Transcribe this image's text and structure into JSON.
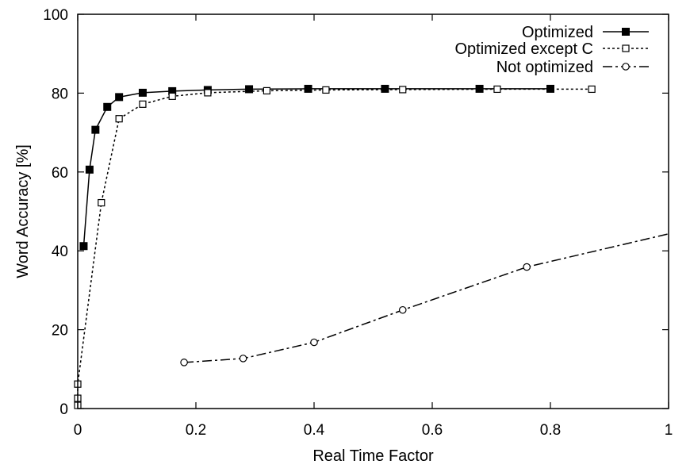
{
  "chart_data": {
    "type": "line",
    "xlabel": "Real Time Factor",
    "ylabel": "Word Accuracy [%]",
    "xlim": [
      0,
      1
    ],
    "ylim": [
      0,
      100
    ],
    "xticks": [
      0,
      0.2,
      0.4,
      0.6,
      0.8,
      1
    ],
    "xtick_labels": [
      "0",
      "0.2",
      "0.4",
      "0.6",
      "0.8",
      "1"
    ],
    "yticks": [
      0,
      20,
      40,
      60,
      80,
      100
    ],
    "ytick_labels": [
      "0",
      "20",
      "40",
      "60",
      "80",
      "100"
    ],
    "grid": false,
    "legend_position": "top-right",
    "series": [
      {
        "name": "Optimized",
        "line_style": "solid",
        "marker": "filled-square",
        "x": [
          0.01,
          0.02,
          0.03,
          0.05,
          0.07,
          0.11,
          0.16,
          0.22,
          0.29,
          0.39,
          0.52,
          0.68,
          0.8
        ],
        "y": [
          41.2,
          60.6,
          70.7,
          76.5,
          79.0,
          80.1,
          80.5,
          80.8,
          81.0,
          81.1,
          81.1,
          81.1,
          81.1
        ]
      },
      {
        "name": "Optimized except C",
        "line_style": "dotted",
        "marker": "open-square",
        "x": [
          0.0,
          0.0,
          0.0,
          0.04,
          0.07,
          0.11,
          0.16,
          0.22,
          0.32,
          0.42,
          0.55,
          0.71,
          0.87
        ],
        "y": [
          0.8,
          2.6,
          6.2,
          52.2,
          73.5,
          77.2,
          79.2,
          80.1,
          80.6,
          80.8,
          80.9,
          81.0,
          81.0
        ]
      },
      {
        "name": "Not optimized",
        "line_style": "dash-dot",
        "marker": "open-circle",
        "x": [
          0.18,
          0.28,
          0.4,
          0.55,
          0.76,
          1.0
        ],
        "y": [
          11.7,
          12.7,
          16.8,
          25.0,
          35.9,
          44.3
        ],
        "marker_on": [
          true,
          true,
          true,
          true,
          true,
          false
        ]
      }
    ]
  }
}
